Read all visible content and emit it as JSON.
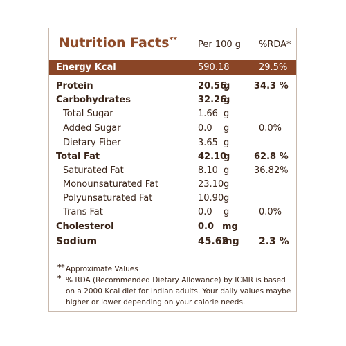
{
  "title": "Nutrition Facts",
  "title_mark": "**",
  "columns": {
    "amount": "Per 100 g",
    "rda": "%RDA*"
  },
  "energy": {
    "name": "Energy Kcal",
    "amount": "590.18",
    "rda": "29.5%"
  },
  "rows": [
    {
      "name": "Protein",
      "amount": "20.56",
      "unit": "g",
      "rda": "34.3 %",
      "bold": true
    },
    {
      "name": "Carbohydrates",
      "amount": "32.26",
      "unit": "g",
      "bold": true
    },
    {
      "name": "Total Sugar",
      "amount": "1.66",
      "unit": "g"
    },
    {
      "name": "Added Sugar",
      "amount": "0.0",
      "unit": "g",
      "rda": "0.0%"
    },
    {
      "name": "Dietary Fiber",
      "amount": "3.65",
      "unit": "g"
    },
    {
      "name": "Total Fat",
      "amount": "42.10",
      "unit": "g",
      "rda": "62.8 %",
      "bold": true
    },
    {
      "name": "Saturated Fat",
      "amount": "8.10",
      "unit": "g",
      "rda": "36.82%"
    },
    {
      "name": "Monounsaturated Fat",
      "amount": "23.10",
      "unit": "g"
    },
    {
      "name": "Polyunsaturated Fat",
      "amount": "10.90",
      "unit": "g"
    },
    {
      "name": "Trans Fat",
      "amount": "0.0",
      "unit": "g",
      "rda": "0.0%"
    },
    {
      "name": "Cholesterol",
      "amount": "0.0",
      "unit": "mg",
      "bold": true
    },
    {
      "name": "Sodium",
      "amount": "45.62",
      "unit": "mg",
      "rda": "2.3 %",
      "bold": true
    }
  ],
  "footnotes": [
    {
      "mark": "**",
      "lines": [
        "Approximate Values"
      ]
    },
    {
      "mark": "*",
      "lines": [
        "% RDA (Recommended Dietary Allowance) by ICMR is based",
        "on a 2000 Kcal diet for Indian adults. Your daily values maybe",
        "higher or lower depending on your calorie needs."
      ]
    }
  ]
}
